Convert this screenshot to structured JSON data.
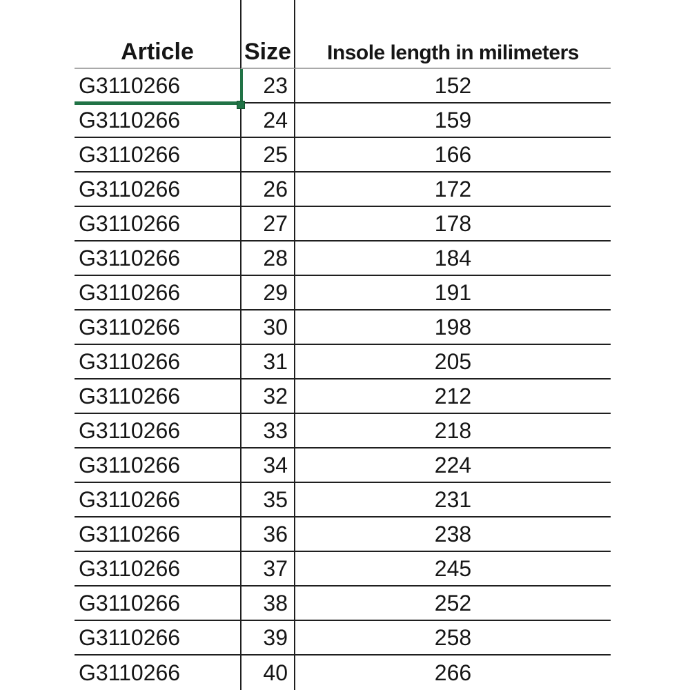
{
  "table": {
    "columns": [
      {
        "label": "Article"
      },
      {
        "label": "Size"
      },
      {
        "label": "Insole length in milimeters"
      }
    ],
    "rows": [
      {
        "article": "G3110266",
        "size": 23,
        "insole_length": 152
      },
      {
        "article": "G3110266",
        "size": 24,
        "insole_length": 159
      },
      {
        "article": "G3110266",
        "size": 25,
        "insole_length": 166
      },
      {
        "article": "G3110266",
        "size": 26,
        "insole_length": 172
      },
      {
        "article": "G3110266",
        "size": 27,
        "insole_length": 178
      },
      {
        "article": "G3110266",
        "size": 28,
        "insole_length": 184
      },
      {
        "article": "G3110266",
        "size": 29,
        "insole_length": 191
      },
      {
        "article": "G3110266",
        "size": 30,
        "insole_length": 198
      },
      {
        "article": "G3110266",
        "size": 31,
        "insole_length": 205
      },
      {
        "article": "G3110266",
        "size": 32,
        "insole_length": 212
      },
      {
        "article": "G3110266",
        "size": 33,
        "insole_length": 218
      },
      {
        "article": "G3110266",
        "size": 34,
        "insole_length": 224
      },
      {
        "article": "G3110266",
        "size": 35,
        "insole_length": 231
      },
      {
        "article": "G3110266",
        "size": 36,
        "insole_length": 238
      },
      {
        "article": "G3110266",
        "size": 37,
        "insole_length": 245
      },
      {
        "article": "G3110266",
        "size": 38,
        "insole_length": 252
      },
      {
        "article": "G3110266",
        "size": 39,
        "insole_length": 258
      },
      {
        "article": "G3110266",
        "size": 40,
        "insole_length": 266
      }
    ]
  },
  "selection": {
    "selected_row_index": 0,
    "selected_column": "article",
    "selected_value": "G3110266",
    "color": "#217346"
  },
  "colors": {
    "grid_line": "#1f1f1f",
    "header_underline": "#a9a9a9",
    "selection_green": "#217346",
    "text": "#161616",
    "background": "#ffffff"
  }
}
